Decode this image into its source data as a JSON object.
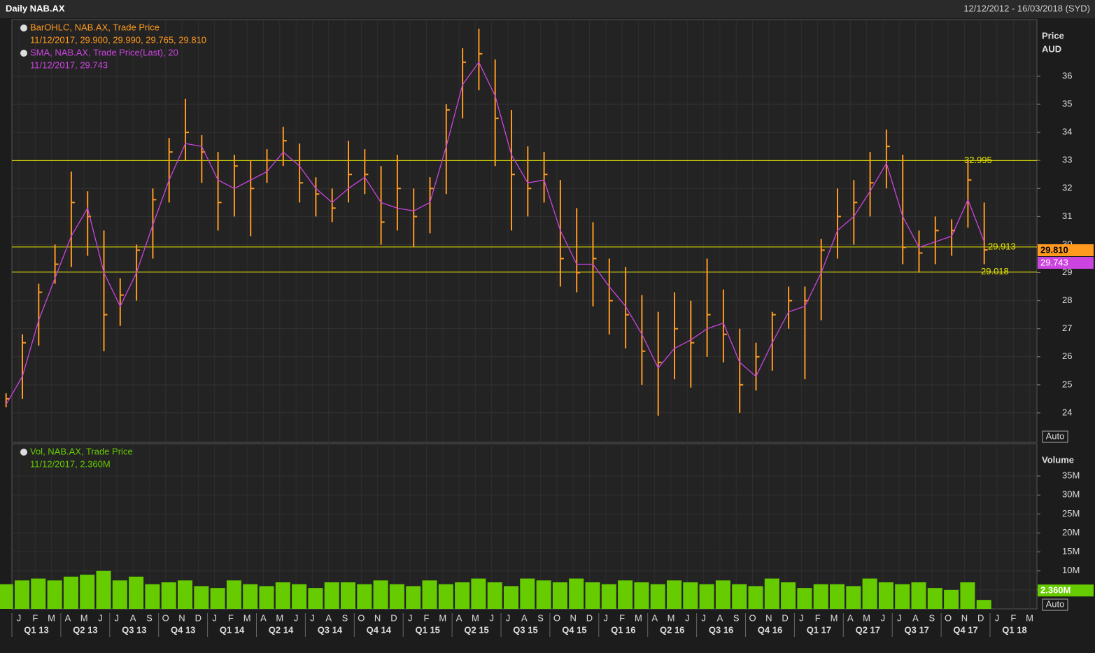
{
  "header": {
    "title": "Daily NAB.AX",
    "range": "12/12/2012 - 16/03/2018 (SYD)"
  },
  "x_axis": {
    "categories": [
      null,
      "J",
      "F",
      "M",
      "A",
      "M",
      "J",
      "J",
      "A",
      "S",
      "O",
      "N",
      "D",
      "J",
      "F",
      "M",
      "A",
      "M",
      "J",
      "J",
      "A",
      "S",
      "O",
      "N",
      "D",
      "J",
      "F",
      "M",
      "A",
      "M",
      "J",
      "J",
      "A",
      "S",
      "O",
      "N",
      "D",
      "J",
      "F",
      "M",
      "A",
      "M",
      "J",
      "J",
      "A",
      "S",
      "O",
      "N",
      "D",
      "J",
      "F",
      "M",
      "A",
      "M",
      "J",
      "J",
      "A",
      "S",
      "O",
      "N",
      "D",
      "J",
      "F",
      "M"
    ],
    "quarters": [
      "Q1 13",
      "Q2 13",
      "Q3 13",
      "Q4 13",
      "Q1 14",
      "Q2 14",
      "Q3 14",
      "Q4 14",
      "Q1 15",
      "Q2 15",
      "Q3 15",
      "Q4 15",
      "Q1 16",
      "Q2 16",
      "Q3 16",
      "Q4 16",
      "Q1 17",
      "Q2 17",
      "Q3 17",
      "Q4 17",
      "Q1 18"
    ]
  },
  "chart_data": [
    {
      "type": "ohlc",
      "y_title": "Price",
      "y_unit": "AUD",
      "button": "Auto",
      "ylim": [
        22.95,
        38.02
      ],
      "yticks": [
        24,
        25,
        26,
        27,
        28,
        29,
        30,
        31,
        32,
        33,
        34,
        35,
        36
      ],
      "grid": true,
      "series": [
        {
          "name": "BarOHLC, NAB.AX, Trade Price",
          "detail": "11/12/2017, 29.900, 29.990, 29.765, 29.810",
          "color": "#ff9a1e",
          "high": [
            24.7,
            26.8,
            28.6,
            30.0,
            32.6,
            31.9,
            30.5,
            28.8,
            30.0,
            32.0,
            33.8,
            35.2,
            33.9,
            33.3,
            33.2,
            33.0,
            33.4,
            34.2,
            33.6,
            32.4,
            32.0,
            33.7,
            33.4,
            32.8,
            33.2,
            32.0,
            32.4,
            35.0,
            37.0,
            37.7,
            36.6,
            34.8,
            33.5,
            33.3,
            32.3,
            31.3,
            30.8,
            29.5,
            29.2,
            28.2,
            27.6,
            28.3,
            28.0,
            29.5,
            28.4,
            27.0,
            26.5,
            27.6,
            28.5,
            28.5,
            30.2,
            32.0,
            32.3,
            33.3,
            34.1,
            33.2,
            30.5,
            31.0,
            30.9,
            33.0,
            31.5,
            null,
            null,
            null
          ],
          "low": [
            24.2,
            24.5,
            26.4,
            28.6,
            29.2,
            29.6,
            26.2,
            27.1,
            28.0,
            29.5,
            31.5,
            33.0,
            32.2,
            30.5,
            31.0,
            30.3,
            32.2,
            32.8,
            31.5,
            31.0,
            30.8,
            31.5,
            31.8,
            30.0,
            30.5,
            29.9,
            30.4,
            31.8,
            34.5,
            35.5,
            32.8,
            30.5,
            31.0,
            31.5,
            28.5,
            28.3,
            27.8,
            26.8,
            26.3,
            25.0,
            23.9,
            25.2,
            24.9,
            26.0,
            25.8,
            24.0,
            24.8,
            25.5,
            27.0,
            25.2,
            27.3,
            29.5,
            30.0,
            31.0,
            32.0,
            29.3,
            29.0,
            29.3,
            29.6,
            30.6,
            29.3,
            null,
            null,
            null
          ],
          "close": [
            24.5,
            26.5,
            28.3,
            29.3,
            31.5,
            31.0,
            27.5,
            28.2,
            29.8,
            31.6,
            33.3,
            34.0,
            33.3,
            31.5,
            32.8,
            32.0,
            33.0,
            33.7,
            32.2,
            31.8,
            31.3,
            32.5,
            32.5,
            30.8,
            32.0,
            31.0,
            32.0,
            34.8,
            36.5,
            36.8,
            34.5,
            32.5,
            32.0,
            32.5,
            29.5,
            29.0,
            29.5,
            28.0,
            27.5,
            26.2,
            25.8,
            27.0,
            26.5,
            27.5,
            26.8,
            25.0,
            26.0,
            27.5,
            28.0,
            28.0,
            29.8,
            31.0,
            31.5,
            32.2,
            33.5,
            29.9,
            29.7,
            30.5,
            30.5,
            32.3,
            29.81,
            null,
            null,
            null
          ]
        },
        {
          "name": "SMA, NAB.AX, Trade Price(Last),  20",
          "detail": "11/12/2017, 29.743",
          "color": "#cc44e0",
          "values": [
            24.3,
            25.3,
            27.3,
            28.8,
            30.3,
            31.3,
            29.0,
            27.8,
            29.0,
            30.7,
            32.3,
            33.6,
            33.5,
            32.3,
            32.0,
            32.3,
            32.6,
            33.3,
            32.8,
            32.0,
            31.5,
            32.0,
            32.4,
            31.5,
            31.3,
            31.2,
            31.5,
            33.5,
            35.7,
            36.5,
            35.3,
            33.2,
            32.2,
            32.3,
            30.5,
            29.3,
            29.3,
            28.5,
            27.8,
            26.8,
            25.6,
            26.3,
            26.6,
            27.0,
            27.2,
            25.8,
            25.3,
            26.5,
            27.6,
            27.8,
            29.0,
            30.5,
            31.0,
            31.9,
            32.9,
            31.0,
            29.9,
            30.1,
            30.3,
            31.6,
            30.1,
            null,
            null,
            null
          ]
        }
      ],
      "levels": [
        32.995,
        29.913,
        29.018
      ],
      "level_color": "#e8e800",
      "tags": [
        {
          "value": 29.81,
          "label": "29.810",
          "color": "#ff9a1e"
        },
        {
          "value": 29.743,
          "label": "29.743",
          "color": "#cc44e0"
        }
      ]
    },
    {
      "type": "bar",
      "y_title": "Volume",
      "button": "Auto",
      "ylim": [
        0,
        43500000
      ],
      "yticks": [
        {
          "value": 5000000,
          "label": "5M"
        },
        {
          "value": 10000000,
          "label": "10M"
        },
        {
          "value": 15000000,
          "label": "15M"
        },
        {
          "value": 20000000,
          "label": "20M"
        },
        {
          "value": 25000000,
          "label": "25M"
        },
        {
          "value": 30000000,
          "label": "30M"
        },
        {
          "value": 35000000,
          "label": "35M"
        }
      ],
      "grid": true,
      "series": [
        {
          "name": "Vol, NAB.AX, Trade Price",
          "detail": "11/12/2017, 2.360M",
          "color": "#66cc00",
          "values": [
            6500000,
            7500000,
            8000000,
            7500000,
            8500000,
            9000000,
            10000000,
            7500000,
            8500000,
            6500000,
            7000000,
            7500000,
            6000000,
            5500000,
            7500000,
            6500000,
            6000000,
            7000000,
            6500000,
            5500000,
            7000000,
            7000000,
            6500000,
            7500000,
            6500000,
            6000000,
            7500000,
            6500000,
            7000000,
            8000000,
            7000000,
            6000000,
            8000000,
            7500000,
            7000000,
            8000000,
            7000000,
            6500000,
            7500000,
            7000000,
            6500000,
            7500000,
            7000000,
            6500000,
            7500000,
            6500000,
            6000000,
            8000000,
            7000000,
            5500000,
            6500000,
            6500000,
            6000000,
            8000000,
            7000000,
            6500000,
            7000000,
            5500000,
            5000000,
            7000000,
            2360000,
            null,
            null,
            null
          ]
        }
      ],
      "tags": [
        {
          "value": 2360000,
          "label": "2.360M",
          "color": "#66cc00"
        }
      ]
    }
  ]
}
